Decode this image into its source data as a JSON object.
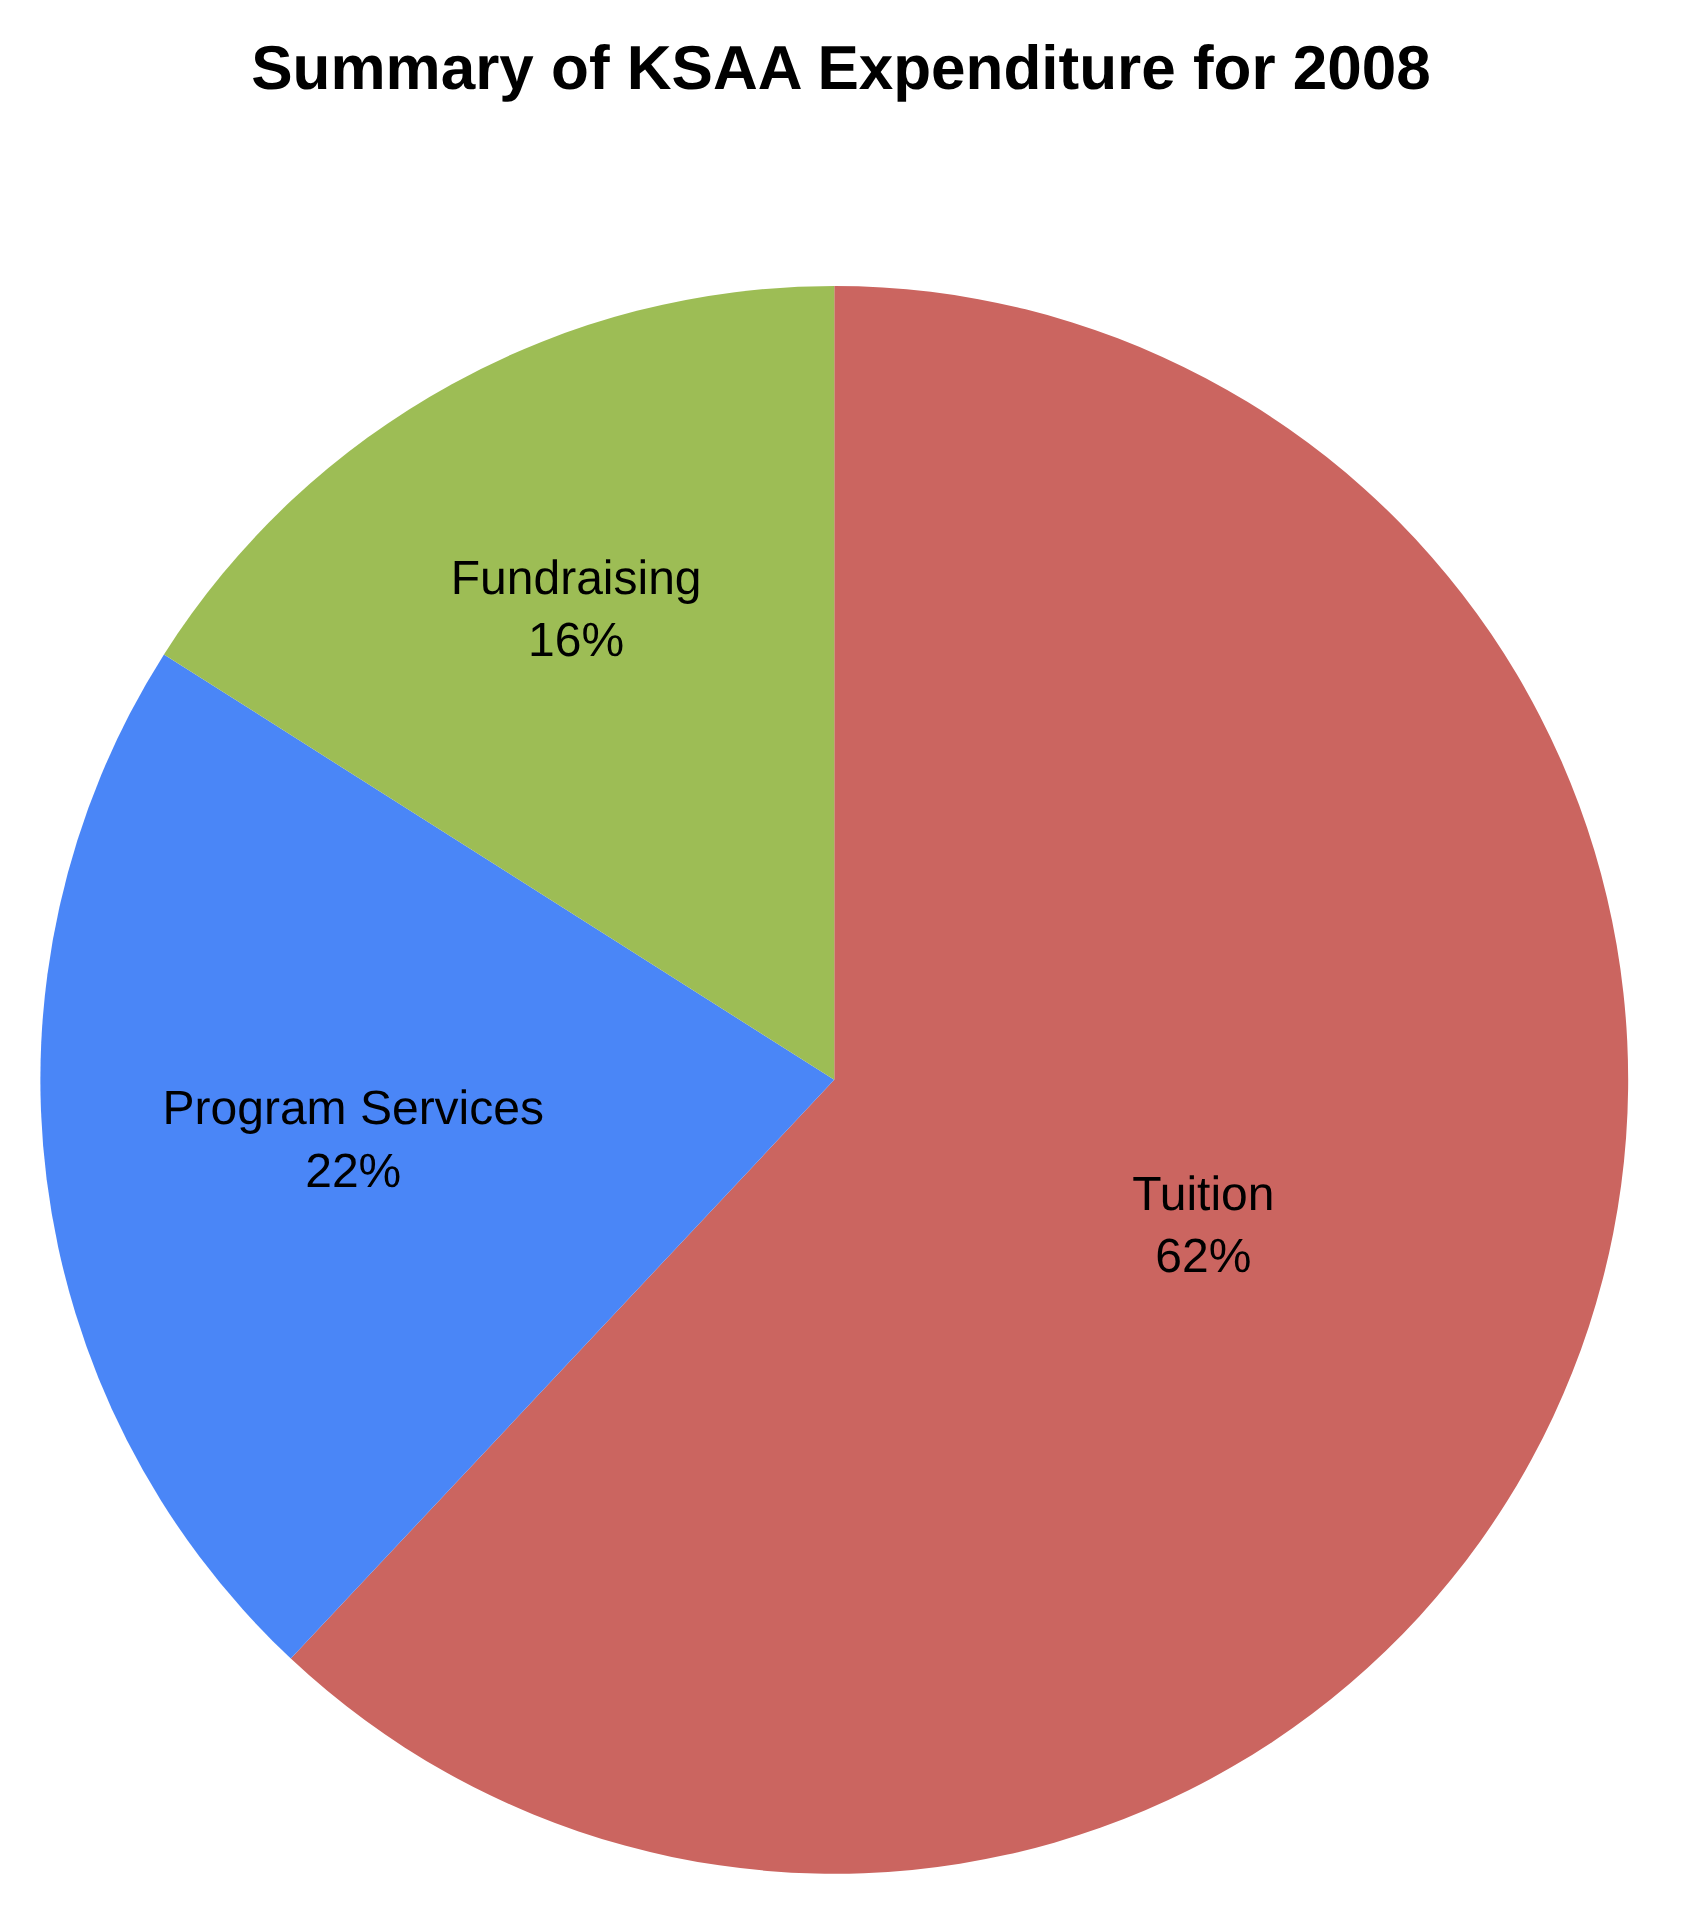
{
  "chart_data": {
    "type": "pie",
    "title": "Summary of KSAA Expenditure for 2008",
    "categories": [
      "Tuition",
      "Program Services",
      "Fundraising"
    ],
    "values": [
      62,
      22,
      16
    ],
    "value_labels": [
      "62%",
      "22%",
      "16%"
    ],
    "colors": [
      "#cb6560",
      "#4a86f7",
      "#9dbd55"
    ],
    "legend": false
  }
}
